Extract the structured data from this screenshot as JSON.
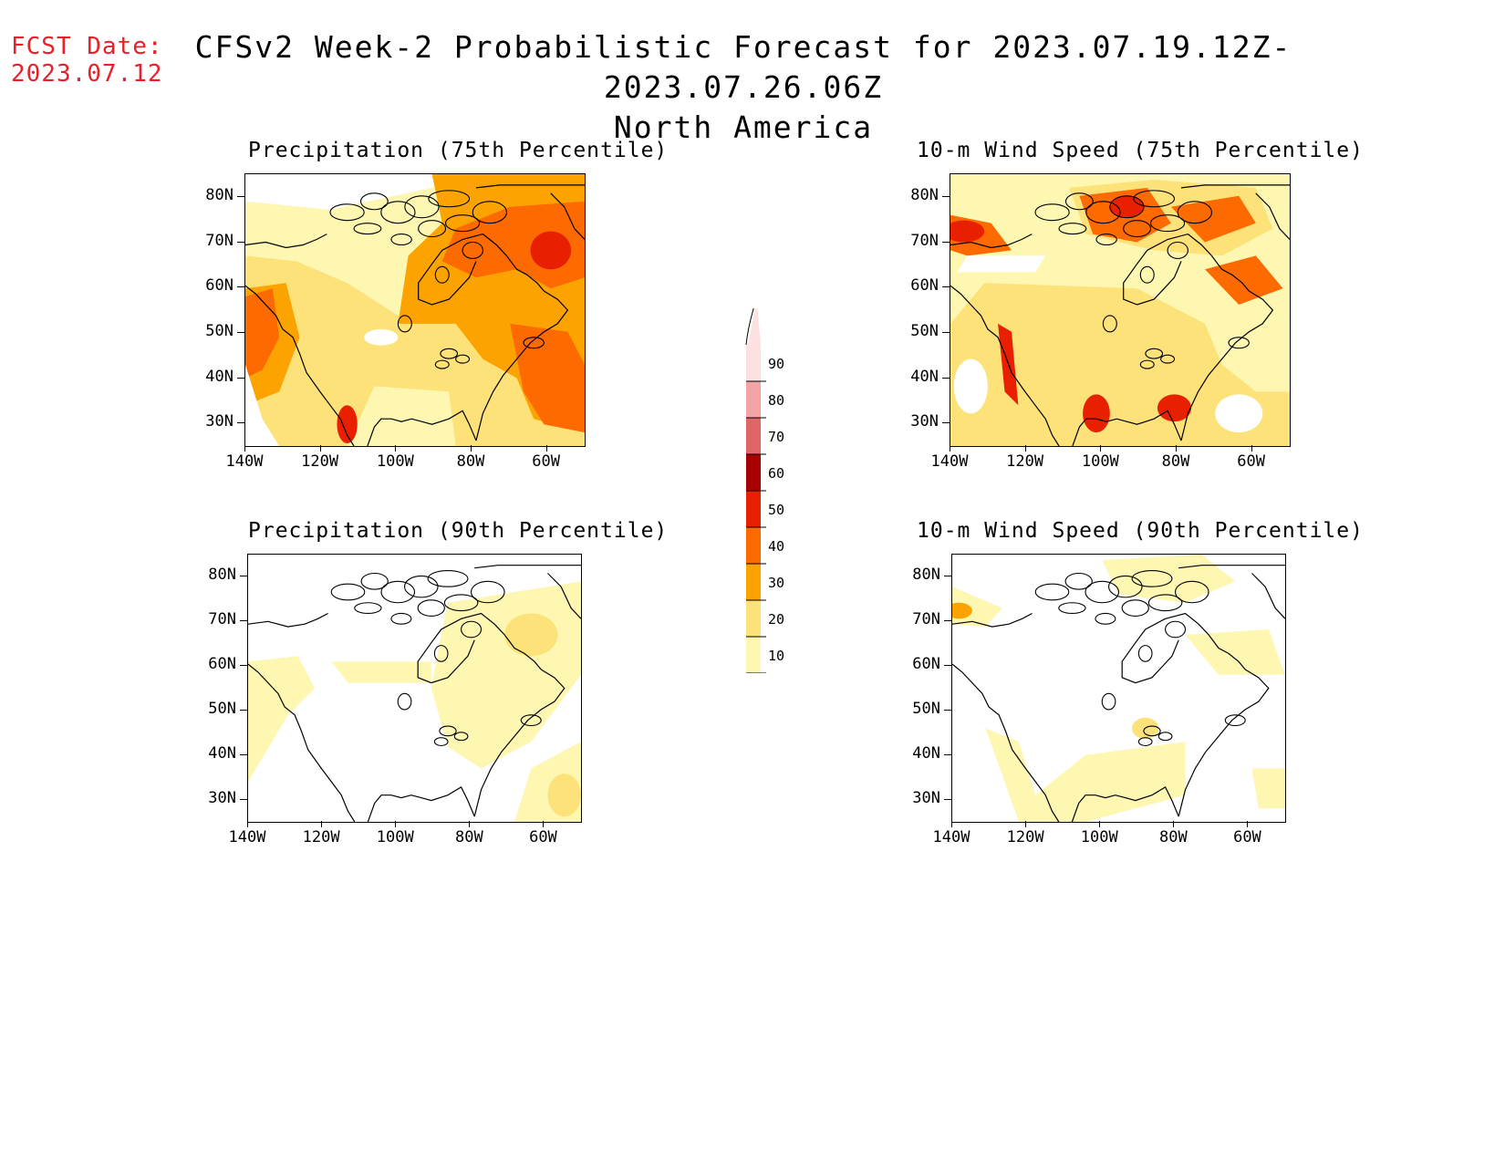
{
  "header": {
    "fcst_label": "FCST Date:",
    "fcst_date": "2023.07.12",
    "title_line1": "CFSv2 Week-2 Probabilistic Forecast for 2023.07.19.12Z-2023.07.26.06Z",
    "title_line2": "North America"
  },
  "panels": [
    {
      "id": "precip75",
      "title": "Precipitation (75th Percentile)",
      "intensity": "high",
      "fields": "precip"
    },
    {
      "id": "wind75",
      "title": "10-m Wind Speed (75th Percentile)",
      "intensity": "high",
      "fields": "wind"
    },
    {
      "id": "precip90",
      "title": "Precipitation (90th Percentile)",
      "intensity": "low",
      "fields": "precip"
    },
    {
      "id": "wind90",
      "title": "10-m Wind Speed (90th Percentile)",
      "intensity": "low",
      "fields": "wind"
    }
  ],
  "axes": {
    "lat_labels": [
      "80N",
      "70N",
      "60N",
      "50N",
      "40N",
      "30N"
    ],
    "lon_labels": [
      "140W",
      "120W",
      "100W",
      "80W",
      "60W"
    ],
    "lat_values": [
      80,
      70,
      60,
      50,
      40,
      30
    ],
    "lon_values": [
      -140,
      -120,
      -100,
      -80,
      -60
    ],
    "lat_range": [
      25,
      85
    ],
    "lon_range": [
      -140,
      -50
    ]
  },
  "colorbar": {
    "labels": [
      "90",
      "80",
      "70",
      "60",
      "50",
      "40",
      "30",
      "20",
      "10"
    ],
    "colors": [
      "#fde1e1",
      "#f4a4a4",
      "#e06666",
      "#a80000",
      "#e82000",
      "#fd6a00",
      "#fca300",
      "#fde179",
      "#fdf7b2"
    ]
  }
}
